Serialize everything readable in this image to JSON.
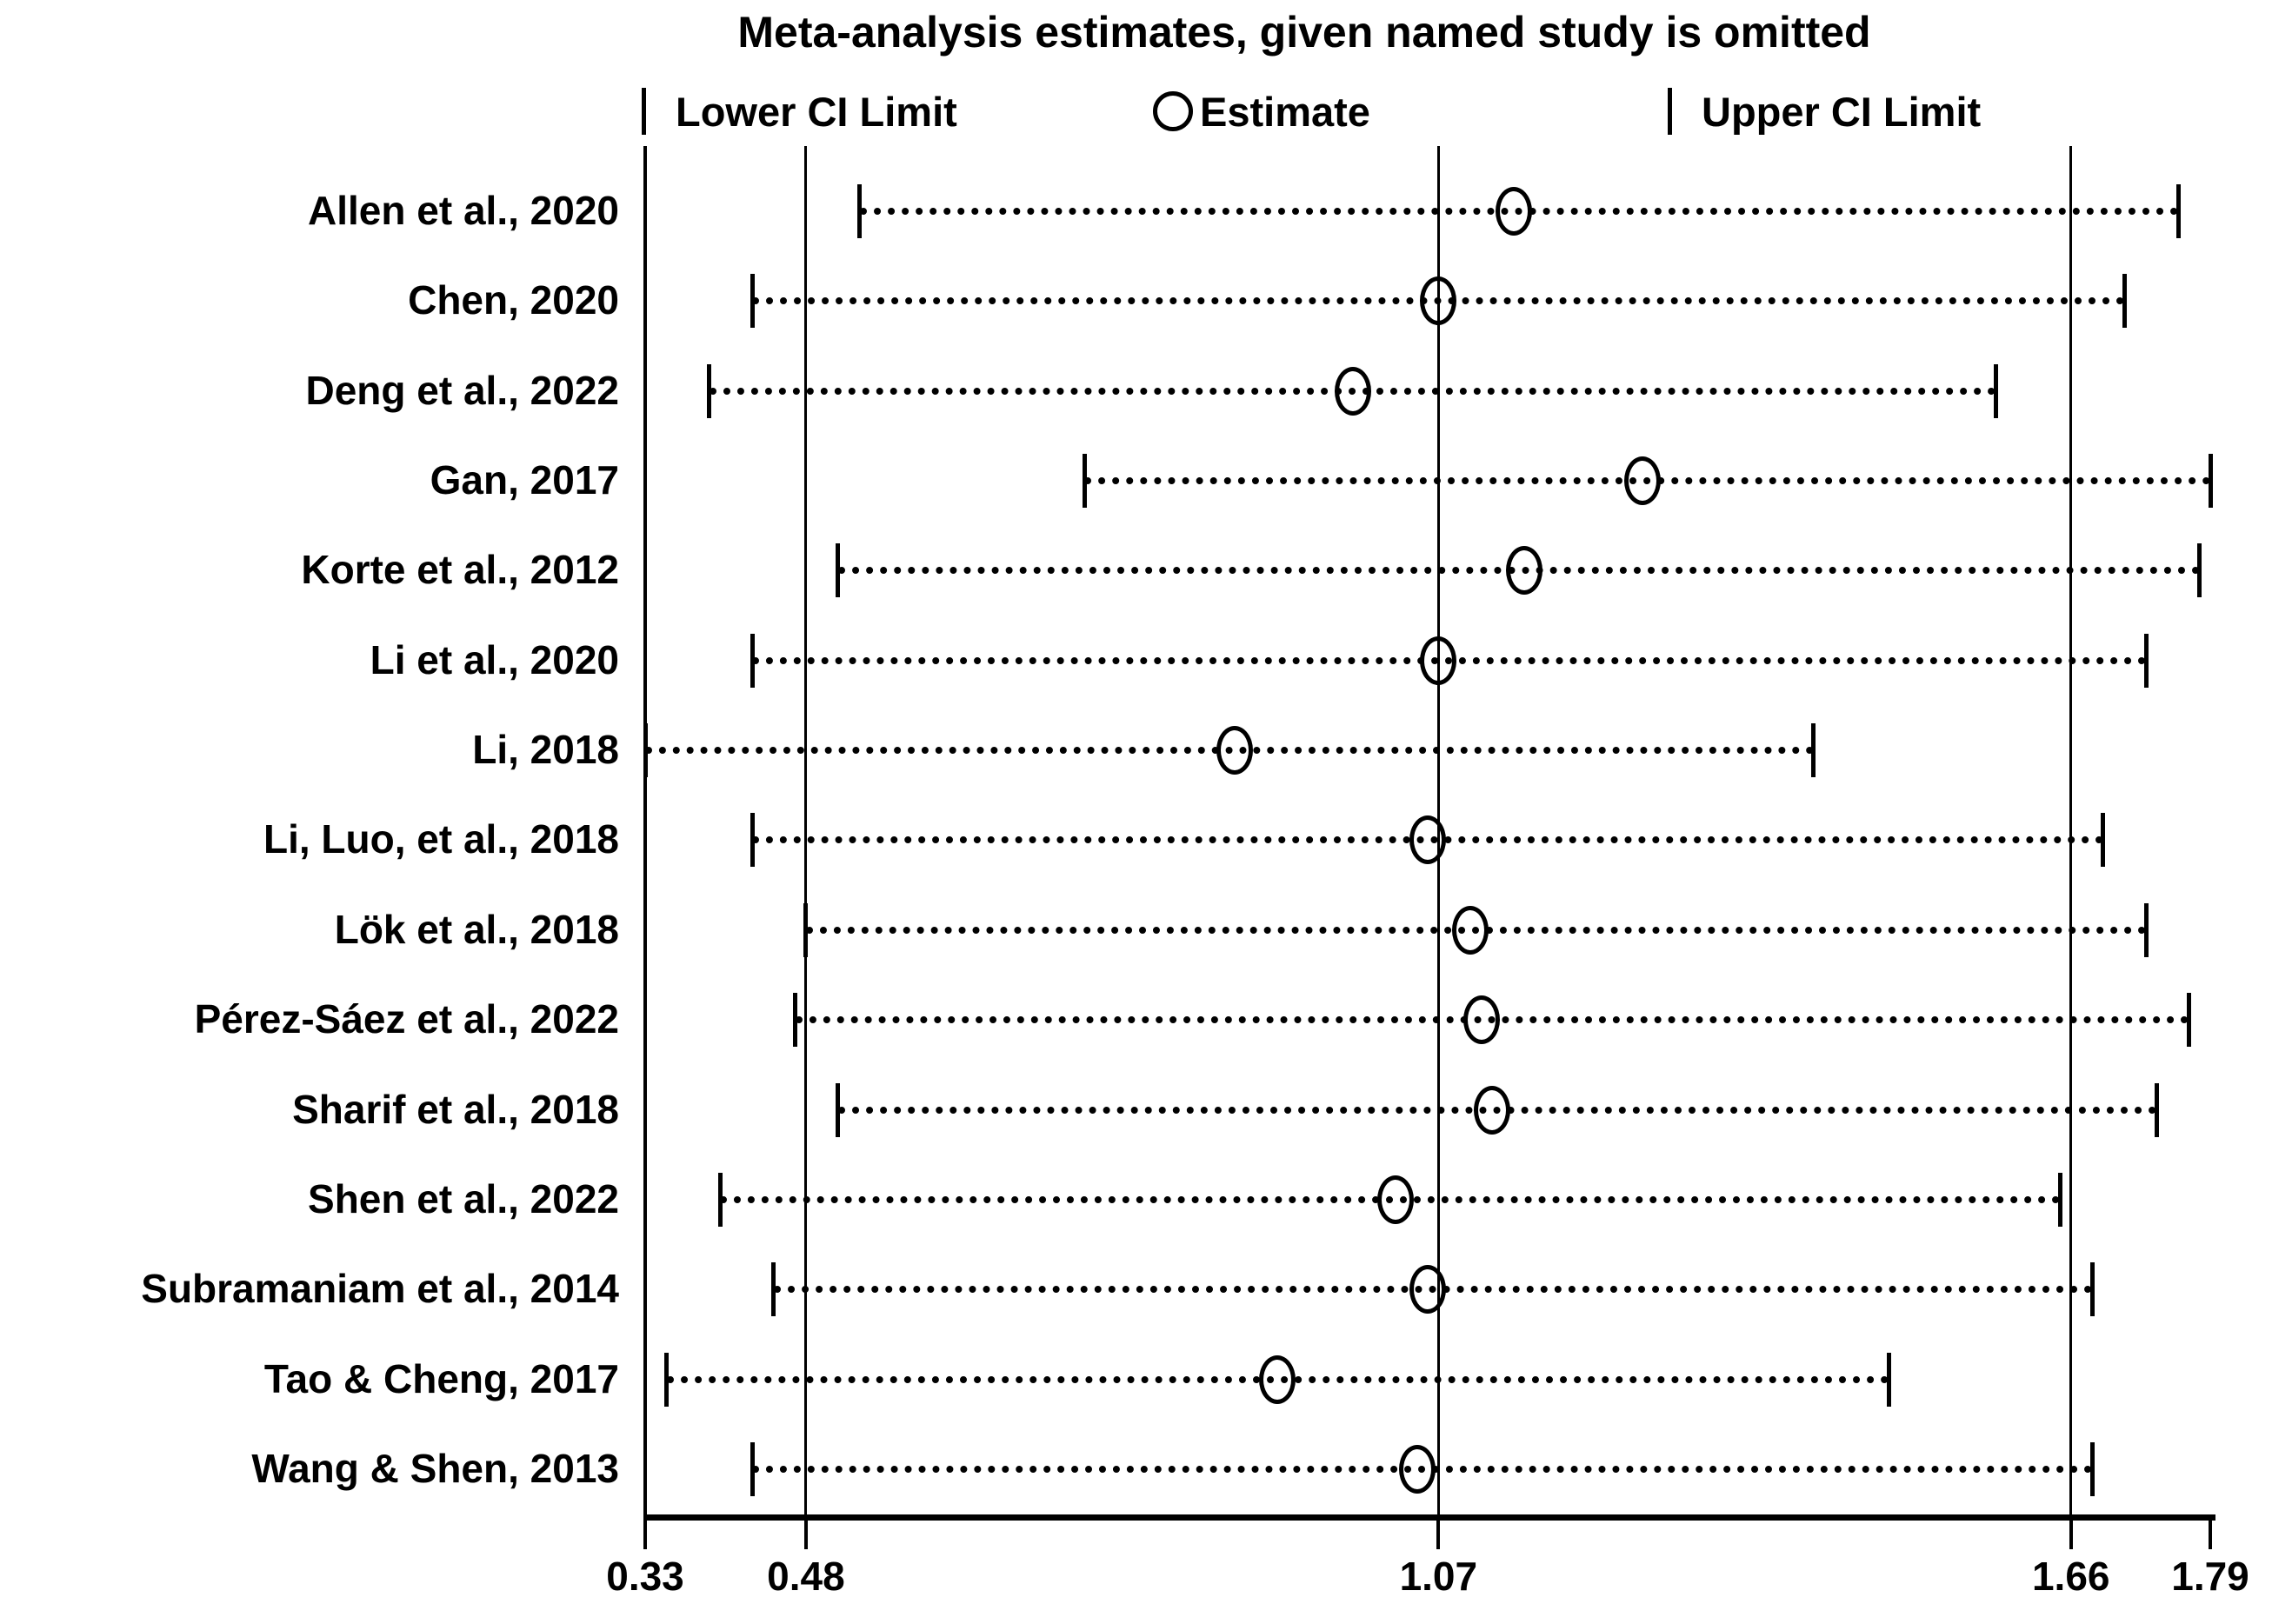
{
  "title": "Meta-analysis estimates, given named study is omitted",
  "legend": {
    "lower_glyph": "|",
    "lower_label": "Lower CI Limit",
    "estimate_glyph": "○",
    "estimate_label": "Estimate",
    "upper_glyph": "|",
    "upper_label": "Upper CI Limit"
  },
  "colors": {
    "foreground": "#000000",
    "background": "#ffffff"
  },
  "chart_data": {
    "type": "scatter",
    "subtype": "leave-one-out-forest-plot",
    "title": "Meta-analysis estimates, given named study is omitted",
    "xlabel": "",
    "ylabel": "",
    "grid": false,
    "legend_position": "top",
    "x_axis": {
      "scale": "linear",
      "range": [
        0.33,
        1.79
      ],
      "tick_values": [
        0.33,
        0.48,
        1.07,
        1.66,
        1.79
      ],
      "tick_labels": [
        "0.33",
        "0.48",
        "1.07",
        "1.66",
        "1.79"
      ],
      "reference_line_values": [
        0.48,
        1.07,
        1.66
      ]
    },
    "studies": [
      {
        "label": "Allen et al., 2020",
        "lower": 0.53,
        "estimate": 1.14,
        "upper": 1.76
      },
      {
        "label": "Chen, 2020",
        "lower": 0.43,
        "estimate": 1.07,
        "upper": 1.71
      },
      {
        "label": "Deng et al., 2022",
        "lower": 0.39,
        "estimate": 0.99,
        "upper": 1.59
      },
      {
        "label": "Gan, 2017",
        "lower": 0.74,
        "estimate": 1.26,
        "upper": 1.79
      },
      {
        "label": "Korte et al., 2012",
        "lower": 0.51,
        "estimate": 1.15,
        "upper": 1.78
      },
      {
        "label": "Li et al., 2020",
        "lower": 0.43,
        "estimate": 1.07,
        "upper": 1.73
      },
      {
        "label": "Li, 2018",
        "lower": 0.33,
        "estimate": 0.88,
        "upper": 1.42
      },
      {
        "label": "Li, Luo, et al., 2018",
        "lower": 0.43,
        "estimate": 1.06,
        "upper": 1.69
      },
      {
        "label": "Lök et al., 2018",
        "lower": 0.48,
        "estimate": 1.1,
        "upper": 1.73
      },
      {
        "label": "Pérez-Sáez et al., 2022",
        "lower": 0.47,
        "estimate": 1.11,
        "upper": 1.77
      },
      {
        "label": "Sharif et al., 2018",
        "lower": 0.51,
        "estimate": 1.12,
        "upper": 1.74
      },
      {
        "label": "Shen et al., 2022",
        "lower": 0.4,
        "estimate": 1.03,
        "upper": 1.65
      },
      {
        "label": "Subramaniam et al., 2014",
        "lower": 0.45,
        "estimate": 1.06,
        "upper": 1.68
      },
      {
        "label": "Tao & Cheng, 2017",
        "lower": 0.35,
        "estimate": 0.92,
        "upper": 1.49
      },
      {
        "label": "Wang & Shen, 2013",
        "lower": 0.43,
        "estimate": 1.05,
        "upper": 1.68
      }
    ]
  }
}
